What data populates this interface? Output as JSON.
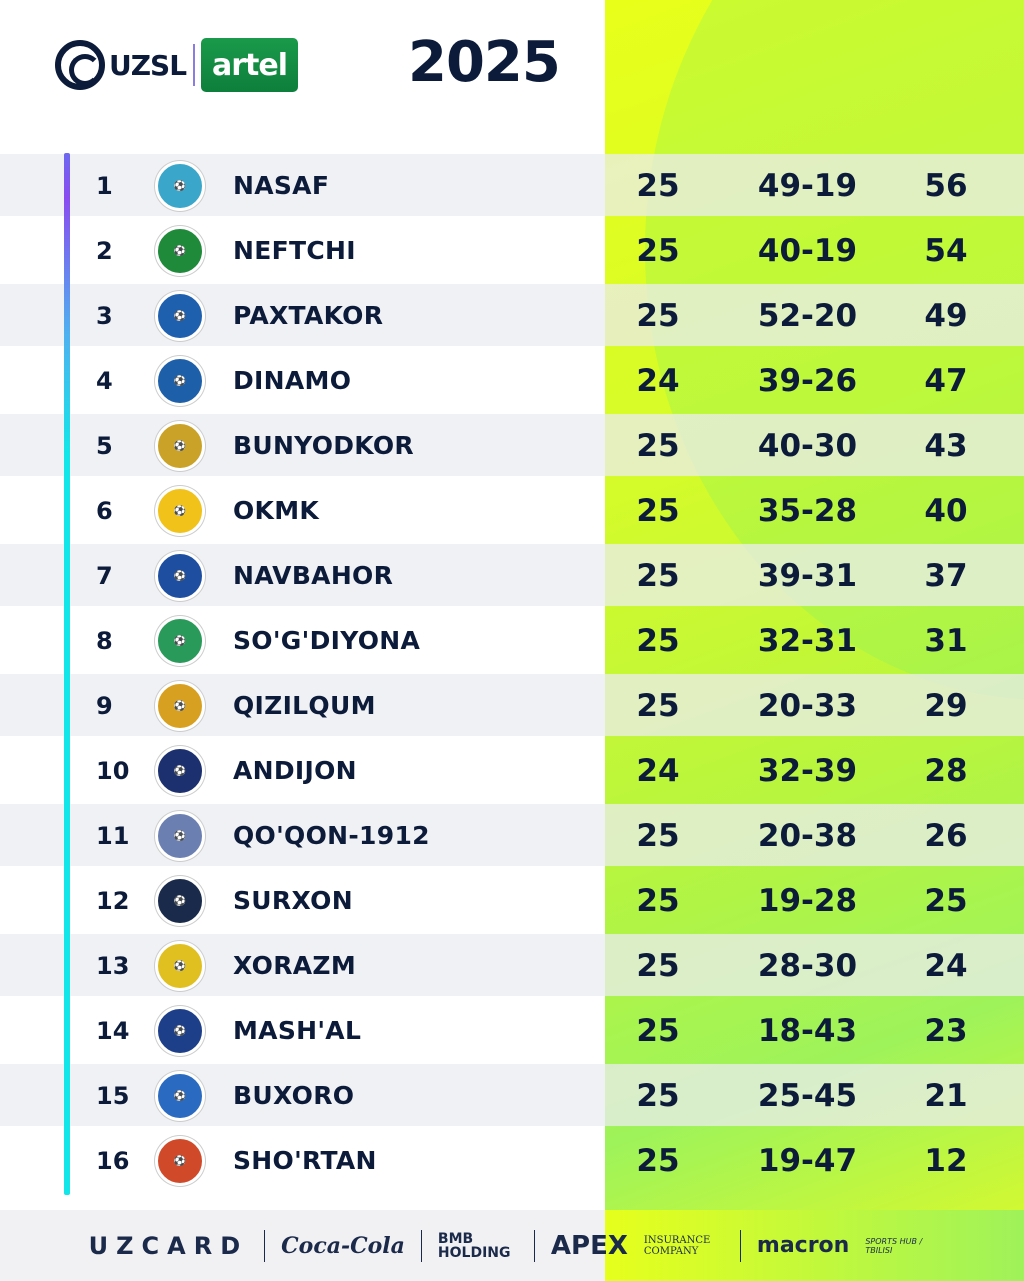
{
  "header": {
    "league": "UZSL",
    "sponsor": "artel",
    "year": "2025"
  },
  "colors": {
    "accent_panel": "#d4fb2a",
    "text": "#0d1b3a",
    "artel_green": "#0d7f3c",
    "bar_top": "#8a4cf0",
    "bar_bottom": "#12e6e8"
  },
  "standings": [
    {
      "pos": "1",
      "team": "NASAF",
      "played": "25",
      "goals": "49-19",
      "points": "56",
      "crest": "#3aa6c9"
    },
    {
      "pos": "2",
      "team": "NEFTCHI",
      "played": "25",
      "goals": "40-19",
      "points": "54",
      "crest": "#1f8a3a"
    },
    {
      "pos": "3",
      "team": "PAXTAKOR",
      "played": "25",
      "goals": "52-20",
      "points": "49",
      "crest": "#1e5fae"
    },
    {
      "pos": "4",
      "team": "DINAMO",
      "played": "24",
      "goals": "39-26",
      "points": "47",
      "crest": "#1d5fa8"
    },
    {
      "pos": "5",
      "team": "BUNYODKOR",
      "played": "25",
      "goals": "40-30",
      "points": "43",
      "crest": "#c9a227"
    },
    {
      "pos": "6",
      "team": "OKMK",
      "played": "25",
      "goals": "35-28",
      "points": "40",
      "crest": "#f0c21a"
    },
    {
      "pos": "7",
      "team": "NAVBAHOR",
      "played": "25",
      "goals": "39-31",
      "points": "37",
      "crest": "#1d4ea0"
    },
    {
      "pos": "8",
      "team": "SO'G'DIYONA",
      "played": "25",
      "goals": "32-31",
      "points": "31",
      "crest": "#2a9a5a"
    },
    {
      "pos": "9",
      "team": "QIZILQUM",
      "played": "25",
      "goals": "20-33",
      "points": "29",
      "crest": "#d8a020"
    },
    {
      "pos": "10",
      "team": "ANDIJON",
      "played": "24",
      "goals": "32-39",
      "points": "28",
      "crest": "#1c2f6e"
    },
    {
      "pos": "11",
      "team": "QO'QON-1912",
      "played": "25",
      "goals": "20-38",
      "points": "26",
      "crest": "#6b7fb0"
    },
    {
      "pos": "12",
      "team": "SURXON",
      "played": "25",
      "goals": "19-28",
      "points": "25",
      "crest": "#1a2a4a"
    },
    {
      "pos": "13",
      "team": "XORAZM",
      "played": "25",
      "goals": "28-30",
      "points": "24",
      "crest": "#e0c020"
    },
    {
      "pos": "14",
      "team": "MASH'AL",
      "played": "25",
      "goals": "18-43",
      "points": "23",
      "crest": "#1d3f8a"
    },
    {
      "pos": "15",
      "team": "BUXORO",
      "played": "25",
      "goals": "25-45",
      "points": "21",
      "crest": "#2a6ac0"
    },
    {
      "pos": "16",
      "team": "SHO'RTAN",
      "played": "25",
      "goals": "19-47",
      "points": "12",
      "crest": "#d04a2a"
    }
  ],
  "sponsors": [
    "UZCARD",
    "Coca-Cola",
    "BMB HOLDING",
    "APEX",
    "INSURANCE COMPANY",
    "macron",
    "SPORTS HUB / TBILISI"
  ]
}
